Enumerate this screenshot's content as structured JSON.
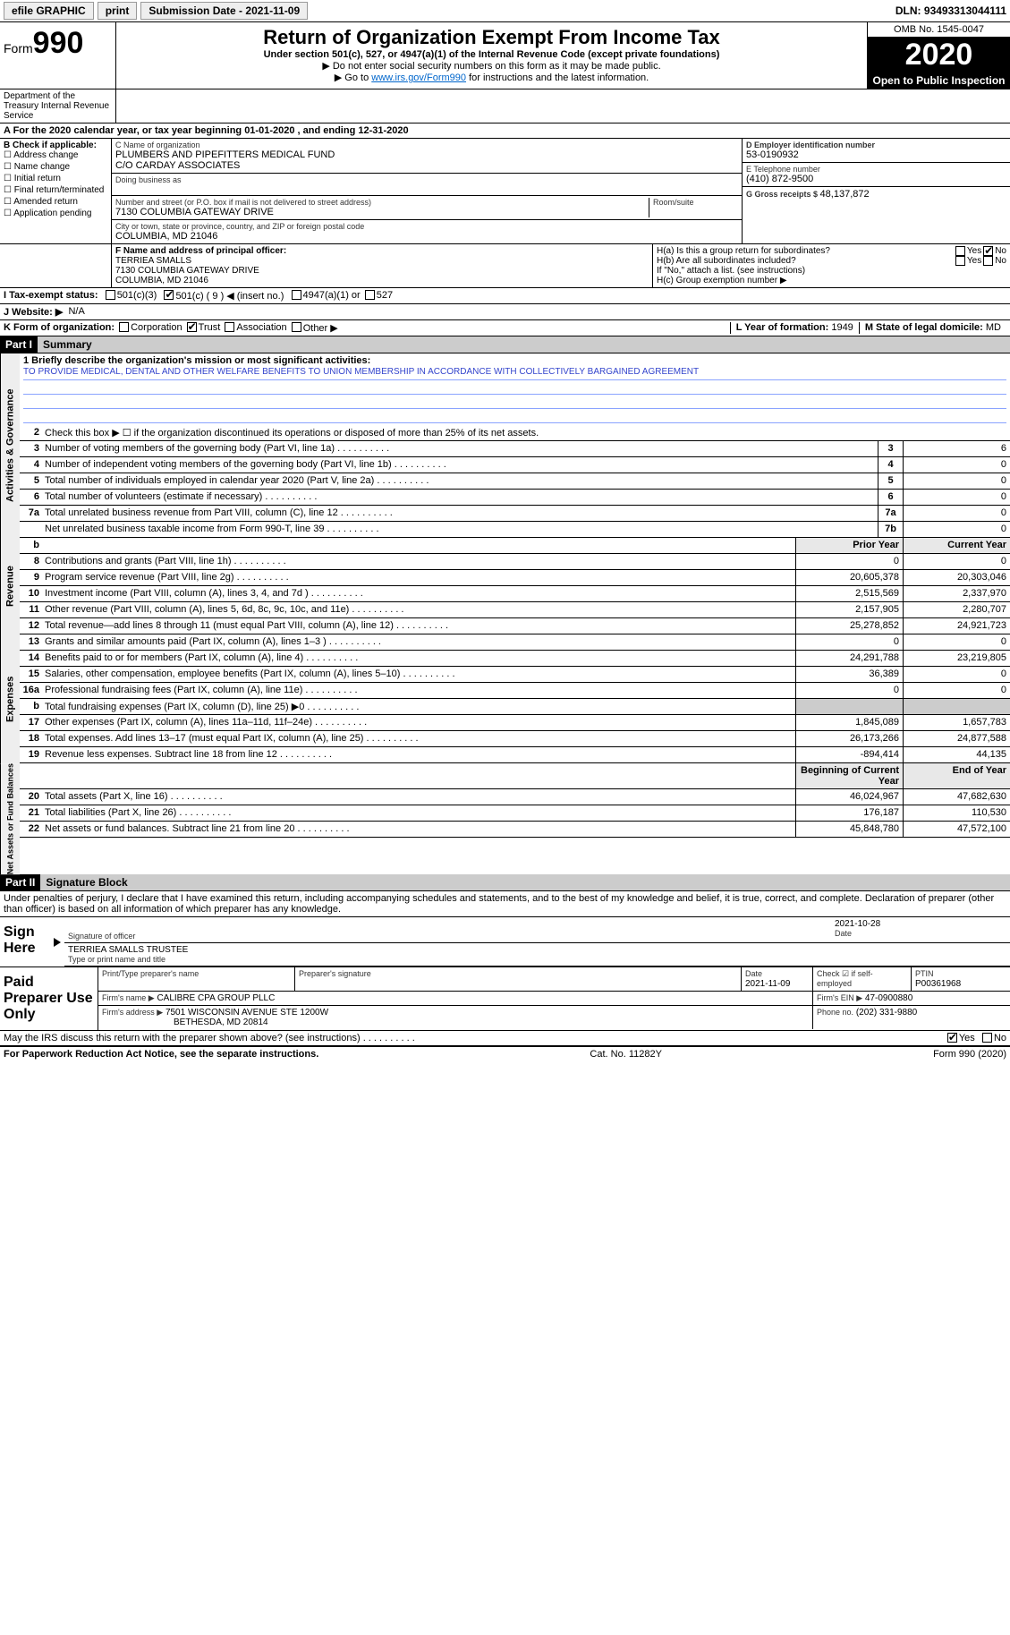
{
  "topbar": {
    "efile": "efile GRAPHIC",
    "print": "print",
    "sub_label": "Submission Date - ",
    "sub_date": "2021-11-09",
    "dln_label": "DLN: ",
    "dln": "93493313044111"
  },
  "header": {
    "form": "Form",
    "f990": "990",
    "title": "Return of Organization Exempt From Income Tax",
    "sub1": "Under section 501(c), 527, or 4947(a)(1) of the Internal Revenue Code (except private foundations)",
    "sub2": "▶ Do not enter social security numbers on this form as it may be made public.",
    "sub3_pre": "▶ Go to ",
    "sub3_link": "www.irs.gov/Form990",
    "sub3_post": " for instructions and the latest information.",
    "omb": "OMB No. 1545-0047",
    "year": "2020",
    "open": "Open to Public Inspection",
    "dept": "Department of the Treasury Internal Revenue Service"
  },
  "row_a": "A For the 2020 calendar year, or tax year beginning 01-01-2020   , and ending 12-31-2020",
  "col_b": {
    "title": "B Check if applicable:",
    "items": [
      "Address change",
      "Name change",
      "Initial return",
      "Final return/terminated",
      "Amended return",
      "Application pending"
    ]
  },
  "col_c": {
    "name_lbl": "C Name of organization",
    "name": "PLUMBERS AND PIPEFITTERS MEDICAL FUND",
    "name2": "C/O CARDAY ASSOCIATES",
    "dba_lbl": "Doing business as",
    "addr_lbl": "Number and street (or P.O. box if mail is not delivered to street address)",
    "addr": "7130 COLUMBIA GATEWAY DRIVE",
    "room_lbl": "Room/suite",
    "city_lbl": "City or town, state or province, country, and ZIP or foreign postal code",
    "city": "COLUMBIA, MD  21046"
  },
  "col_right": {
    "d_lbl": "D Employer identification number",
    "d_val": "53-0190932",
    "e_lbl": "E Telephone number",
    "e_val": "(410) 872-9500",
    "g_lbl": "G Gross receipts $ ",
    "g_val": "48,137,872"
  },
  "row_f": {
    "lbl": "F Name and address of principal officer:",
    "name": "TERRIEA SMALLS",
    "addr1": "7130 COLUMBIA GATEWAY DRIVE",
    "addr2": "COLUMBIA, MD  21046"
  },
  "row_h": {
    "ha": "H(a)  Is this a group return for subordinates?",
    "hb": "H(b)  Are all subordinates included?",
    "hb_note": "If \"No,\" attach a list. (see instructions)",
    "hc": "H(c)  Group exemption number ▶",
    "yes": "Yes",
    "no": "No"
  },
  "row_i": {
    "lbl": "I  Tax-exempt status:",
    "o1": "501(c)(3)",
    "o2": "501(c) ( 9 ) ◀ (insert no.)",
    "o3": "4947(a)(1) or",
    "o4": "527"
  },
  "row_j": {
    "lbl": "J  Website: ▶",
    "val": "N/A"
  },
  "row_k": {
    "lbl": "K Form of organization:",
    "o1": "Corporation",
    "o2": "Trust",
    "o3": "Association",
    "o4": "Other ▶",
    "l_lbl": "L Year of formation: ",
    "l_val": "1949",
    "m_lbl": "M State of legal domicile: ",
    "m_val": "MD"
  },
  "part1": {
    "hdr": "Part I",
    "title": "Summary"
  },
  "mission": {
    "lbl": "1  Briefly describe the organization's mission or most significant activities:",
    "text": "TO PROVIDE MEDICAL, DENTAL AND OTHER WELFARE BENEFITS TO UNION MEMBERSHIP IN ACCORDANCE WITH COLLECTIVELY BARGAINED AGREEMENT"
  },
  "gov_rows": [
    {
      "n": "2",
      "d": "Check this box ▶ ☐  if the organization discontinued its operations or disposed of more than 25% of its net assets.",
      "box": "",
      "v": ""
    },
    {
      "n": "3",
      "d": "Number of voting members of the governing body (Part VI, line 1a)",
      "box": "3",
      "v": "6"
    },
    {
      "n": "4",
      "d": "Number of independent voting members of the governing body (Part VI, line 1b)",
      "box": "4",
      "v": "0"
    },
    {
      "n": "5",
      "d": "Total number of individuals employed in calendar year 2020 (Part V, line 2a)",
      "box": "5",
      "v": "0"
    },
    {
      "n": "6",
      "d": "Total number of volunteers (estimate if necessary)",
      "box": "6",
      "v": "0"
    },
    {
      "n": "7a",
      "d": "Total unrelated business revenue from Part VIII, column (C), line 12",
      "box": "7a",
      "v": "0"
    },
    {
      "n": "",
      "d": "Net unrelated business taxable income from Form 990-T, line 39",
      "box": "7b",
      "v": "0"
    }
  ],
  "col_headers": {
    "b": "b",
    "prior": "Prior Year",
    "current": "Current Year",
    "boy": "Beginning of Current Year",
    "eoy": "End of Year"
  },
  "rev_rows": [
    {
      "n": "8",
      "d": "Contributions and grants (Part VIII, line 1h)",
      "p": "0",
      "c": "0"
    },
    {
      "n": "9",
      "d": "Program service revenue (Part VIII, line 2g)",
      "p": "20,605,378",
      "c": "20,303,046"
    },
    {
      "n": "10",
      "d": "Investment income (Part VIII, column (A), lines 3, 4, and 7d )",
      "p": "2,515,569",
      "c": "2,337,970"
    },
    {
      "n": "11",
      "d": "Other revenue (Part VIII, column (A), lines 5, 6d, 8c, 9c, 10c, and 11e)",
      "p": "2,157,905",
      "c": "2,280,707"
    },
    {
      "n": "12",
      "d": "Total revenue—add lines 8 through 11 (must equal Part VIII, column (A), line 12)",
      "p": "25,278,852",
      "c": "24,921,723"
    }
  ],
  "exp_rows": [
    {
      "n": "13",
      "d": "Grants and similar amounts paid (Part IX, column (A), lines 1–3 )",
      "p": "0",
      "c": "0"
    },
    {
      "n": "14",
      "d": "Benefits paid to or for members (Part IX, column (A), line 4)",
      "p": "24,291,788",
      "c": "23,219,805"
    },
    {
      "n": "15",
      "d": "Salaries, other compensation, employee benefits (Part IX, column (A), lines 5–10)",
      "p": "36,389",
      "c": "0"
    },
    {
      "n": "16a",
      "d": "Professional fundraising fees (Part IX, column (A), line 11e)",
      "p": "0",
      "c": "0"
    },
    {
      "n": "b",
      "d": "Total fundraising expenses (Part IX, column (D), line 25) ▶0",
      "p": "",
      "c": "",
      "shade": true
    },
    {
      "n": "17",
      "d": "Other expenses (Part IX, column (A), lines 11a–11d, 11f–24e)",
      "p": "1,845,089",
      "c": "1,657,783"
    },
    {
      "n": "18",
      "d": "Total expenses. Add lines 13–17 (must equal Part IX, column (A), line 25)",
      "p": "26,173,266",
      "c": "24,877,588"
    },
    {
      "n": "19",
      "d": "Revenue less expenses. Subtract line 18 from line 12",
      "p": "-894,414",
      "c": "44,135"
    }
  ],
  "net_rows": [
    {
      "n": "20",
      "d": "Total assets (Part X, line 16)",
      "p": "46,024,967",
      "c": "47,682,630"
    },
    {
      "n": "21",
      "d": "Total liabilities (Part X, line 26)",
      "p": "176,187",
      "c": "110,530"
    },
    {
      "n": "22",
      "d": "Net assets or fund balances. Subtract line 21 from line 20",
      "p": "45,848,780",
      "c": "47,572,100"
    }
  ],
  "vside": {
    "gov": "Activities & Governance",
    "rev": "Revenue",
    "exp": "Expenses",
    "net": "Net Assets or Fund Balances"
  },
  "part2": {
    "hdr": "Part II",
    "title": "Signature Block"
  },
  "penalty": "Under penalties of perjury, I declare that I have examined this return, including accompanying schedules and statements, and to the best of my knowledge and belief, it is true, correct, and complete. Declaration of preparer (other than officer) is based on all information of which preparer has any knowledge.",
  "sign": {
    "here": "Sign Here",
    "sig_lbl": "Signature of officer",
    "date_lbl": "Date",
    "date": "2021-10-28",
    "name": "TERRIEA SMALLS  TRUSTEE",
    "name_lbl": "Type or print name and title"
  },
  "paid": {
    "lbl": "Paid Preparer Use Only",
    "h1": "Print/Type preparer's name",
    "h2": "Preparer's signature",
    "h3": "Date",
    "h3v": "2021-11-09",
    "h4": "Check ☑ if self-employed",
    "h5": "PTIN",
    "h5v": "P00361968",
    "firm_lbl": "Firm's name   ▶",
    "firm": "CALIBRE CPA GROUP PLLC",
    "ein_lbl": "Firm's EIN ▶",
    "ein": "47-0900880",
    "addr_lbl": "Firm's address ▶",
    "addr1": "7501 WISCONSIN AVENUE STE 1200W",
    "addr2": "BETHESDA, MD  20814",
    "phone_lbl": "Phone no.",
    "phone": "(202) 331-9880"
  },
  "may": {
    "q": "May the IRS discuss this return with the preparer shown above? (see instructions)",
    "yes": "Yes",
    "no": "No"
  },
  "footer": {
    "left": "For Paperwork Reduction Act Notice, see the separate instructions.",
    "mid": "Cat. No. 11282Y",
    "right": "Form 990 (2020)"
  }
}
